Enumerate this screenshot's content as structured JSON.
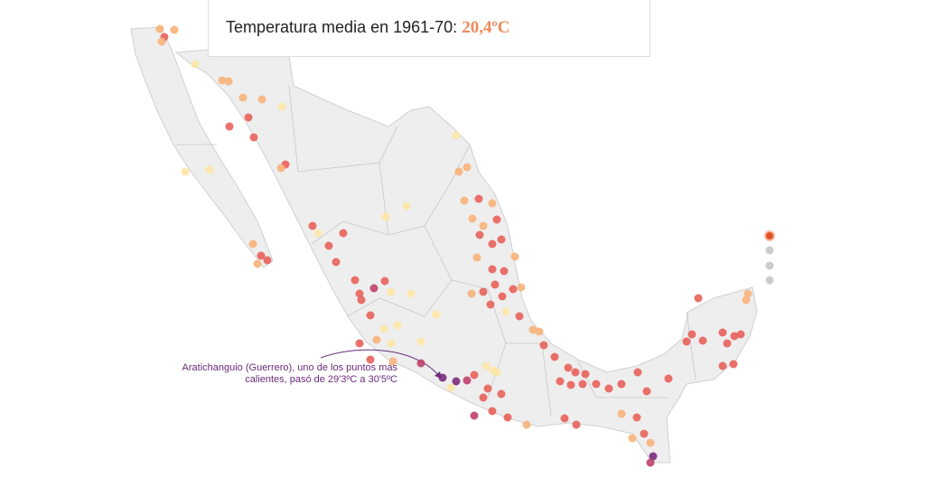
{
  "header": {
    "title": "Temperatura media en 1961-70:",
    "value": "20,4ºC"
  },
  "annotation": {
    "lines": [
      "Aratichanguio (Guerrero), uno de los puntos más",
      "calientes, pasó de 29'3ºC a 30'5ºC"
    ]
  }
}
